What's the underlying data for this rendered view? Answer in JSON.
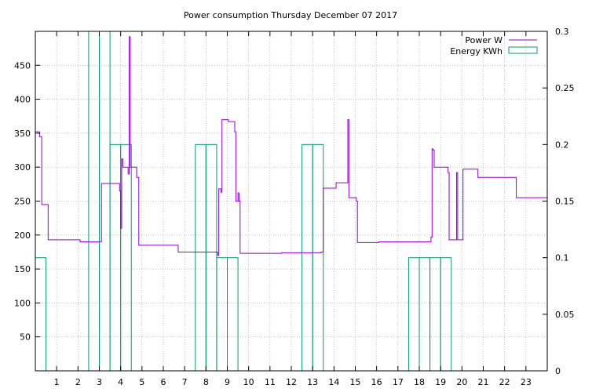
{
  "chart_data": {
    "type": "line",
    "title": "Power consumption Thursday December 07 2017",
    "grid": true,
    "legend_position": "top-right",
    "x_ticks": [
      1,
      2,
      3,
      4,
      5,
      6,
      7,
      8,
      9,
      10,
      11,
      12,
      13,
      14,
      15,
      16,
      17,
      18,
      19,
      20,
      21,
      22,
      23
    ],
    "y_ticks": [
      50,
      100,
      150,
      200,
      250,
      300,
      350,
      400,
      450
    ],
    "y2_ticks": [
      0,
      0.05,
      0.1,
      0.15,
      0.2,
      0.25,
      0.3
    ],
    "xlim": [
      0,
      24
    ],
    "ylim": [
      0,
      500
    ],
    "y2lim": [
      0,
      0.3
    ],
    "colors": {
      "power": "#9400d3",
      "energy": "#009e73",
      "grid": "#a0a0a0"
    },
    "series": [
      {
        "name": "Power W",
        "axis": "left",
        "style": "steps",
        "points": [
          [
            0.0,
            352
          ],
          [
            0.2,
            345
          ],
          [
            0.3,
            245
          ],
          [
            0.55,
            245
          ],
          [
            0.6,
            193
          ],
          [
            2.0,
            193
          ],
          [
            2.1,
            190
          ],
          [
            3.0,
            190
          ],
          [
            3.1,
            276
          ],
          [
            3.9,
            276
          ],
          [
            3.95,
            265
          ],
          [
            4.0,
            210
          ],
          [
            4.05,
            312
          ],
          [
            4.1,
            300
          ],
          [
            4.3,
            300
          ],
          [
            4.35,
            290
          ],
          [
            4.4,
            492
          ],
          [
            4.45,
            300
          ],
          [
            4.7,
            300
          ],
          [
            4.75,
            285
          ],
          [
            4.85,
            185
          ],
          [
            6.6,
            185
          ],
          [
            6.7,
            175
          ],
          [
            8.5,
            175
          ],
          [
            8.55,
            170
          ],
          [
            8.6,
            268
          ],
          [
            8.7,
            263
          ],
          [
            8.75,
            370
          ],
          [
            9.0,
            370
          ],
          [
            9.05,
            367
          ],
          [
            9.3,
            367
          ],
          [
            9.35,
            352
          ],
          [
            9.4,
            250
          ],
          [
            9.5,
            262
          ],
          [
            9.55,
            250
          ],
          [
            9.6,
            173
          ],
          [
            11.5,
            173
          ],
          [
            11.55,
            174
          ],
          [
            13.2,
            174
          ],
          [
            13.4,
            175
          ],
          [
            13.5,
            269
          ],
          [
            14.0,
            269
          ],
          [
            14.1,
            277
          ],
          [
            14.6,
            277
          ],
          [
            14.65,
            370
          ],
          [
            14.7,
            255
          ],
          [
            15.0,
            255
          ],
          [
            15.05,
            250
          ],
          [
            15.1,
            189
          ],
          [
            16.0,
            189
          ],
          [
            16.1,
            190
          ],
          [
            18.5,
            190
          ],
          [
            18.55,
            197
          ],
          [
            18.6,
            327
          ],
          [
            18.65,
            325
          ],
          [
            18.7,
            300
          ],
          [
            19.3,
            300
          ],
          [
            19.35,
            292
          ],
          [
            19.4,
            193
          ],
          [
            19.7,
            193
          ],
          [
            19.75,
            292
          ],
          [
            19.8,
            193
          ],
          [
            20.0,
            193
          ],
          [
            20.05,
            297
          ],
          [
            20.7,
            297
          ],
          [
            20.75,
            285
          ],
          [
            22.5,
            285
          ],
          [
            22.55,
            255
          ],
          [
            24.0,
            255
          ]
        ]
      },
      {
        "name": "Energy KWh",
        "axis": "right",
        "style": "boxes",
        "boxes": [
          [
            0.0,
            0.5,
            0.1
          ],
          [
            2.5,
            3.0,
            0.3
          ],
          [
            3.0,
            3.5,
            0.3
          ],
          [
            3.5,
            4.0,
            0.2
          ],
          [
            4.0,
            4.5,
            0.2
          ],
          [
            7.5,
            8.0,
            0.2
          ],
          [
            8.0,
            8.5,
            0.2
          ],
          [
            8.5,
            9.0,
            0.1
          ],
          [
            9.0,
            9.5,
            0.1
          ],
          [
            12.5,
            13.0,
            0.2
          ],
          [
            13.0,
            13.5,
            0.2
          ],
          [
            17.5,
            18.0,
            0.1
          ],
          [
            18.0,
            18.5,
            0.1
          ],
          [
            18.5,
            19.0,
            0.1
          ],
          [
            19.0,
            19.5,
            0.1
          ]
        ]
      }
    ]
  }
}
